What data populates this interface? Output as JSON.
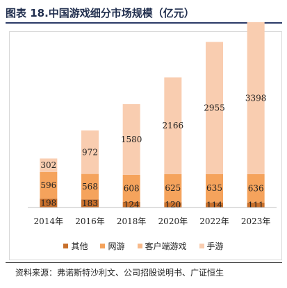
{
  "page": {
    "title": "图表 18.中国游戏细分市场规模（亿元）",
    "source": "资料来源：弗诺斯特沙利文、公司招股说明书、广证恒生"
  },
  "chart_data": {
    "type": "bar",
    "stacked": true,
    "categories": [
      "2014年",
      "2016年",
      "2018年",
      "2020年",
      "2022年",
      "2023年"
    ],
    "series": [
      {
        "name": "其他",
        "values": [
          198,
          183,
          124,
          120,
          114,
          111
        ],
        "color": "#c8702c"
      },
      {
        "name": "网游",
        "values": [
          596,
          568,
          608,
          625,
          635,
          636
        ],
        "color": "#f5a35c"
      },
      {
        "name": "客户端游戏",
        "values": [
          0,
          0,
          0,
          0,
          0,
          0
        ],
        "color": "#f7b98a"
      },
      {
        "name": "手游",
        "values": [
          302,
          972,
          1580,
          2166,
          2955,
          3398
        ],
        "color": "#f9cdb0"
      }
    ],
    "ylim": [
      0,
      4300
    ],
    "legend_position": "bottom",
    "grid": false
  }
}
